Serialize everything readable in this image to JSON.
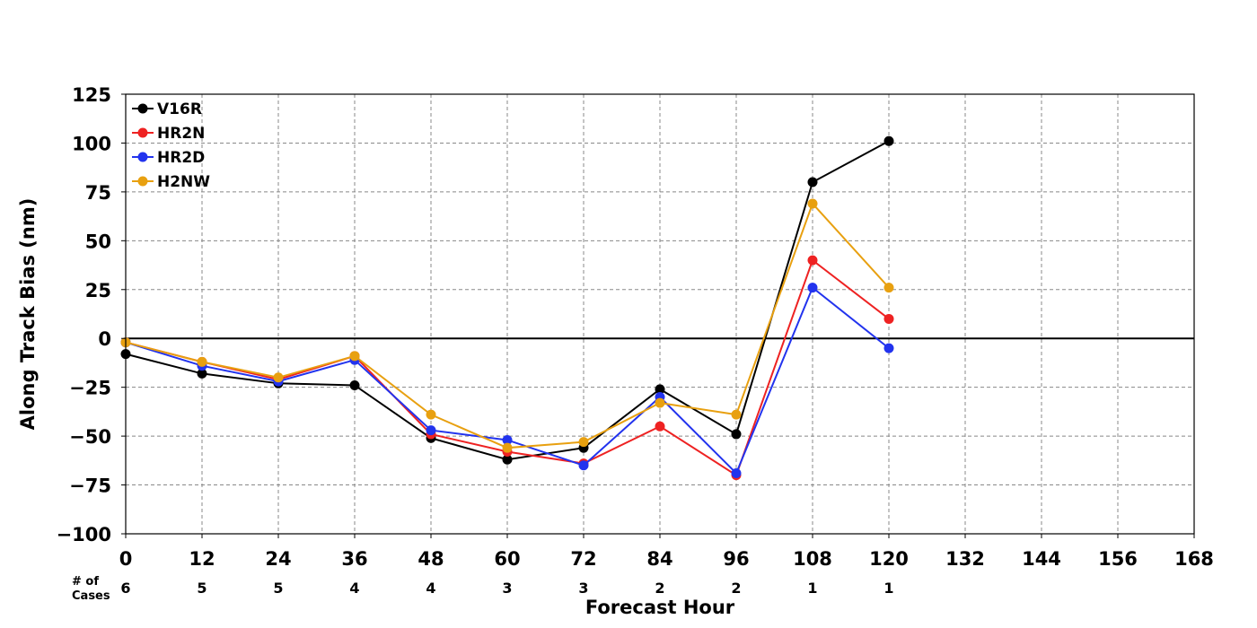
{
  "chart_data": {
    "type": "line",
    "title": "",
    "xlabel": "Forecast Hour",
    "ylabel": "Along Track Bias (nm)",
    "xlim": [
      0,
      168
    ],
    "ylim": [
      -100,
      125
    ],
    "x_ticks": [
      0,
      12,
      24,
      36,
      48,
      60,
      72,
      84,
      96,
      108,
      120,
      132,
      144,
      156,
      168
    ],
    "y_ticks": [
      -100,
      -75,
      -50,
      -25,
      0,
      25,
      50,
      75,
      100,
      125
    ],
    "x_tick_labels": [
      "0",
      "12",
      "24",
      "36",
      "48",
      "60",
      "72",
      "84",
      "96",
      "108",
      "120",
      "132",
      "144",
      "156",
      "168"
    ],
    "y_tick_labels": [
      "−100",
      "−75",
      "−50",
      "−25",
      "0",
      "25",
      "50",
      "75",
      "100",
      "125"
    ],
    "grid": true,
    "legend_position": "top-left",
    "cases_label_line1": "# of",
    "cases_label_line2": "Cases",
    "cases": [
      {
        "x": 0,
        "label": "6"
      },
      {
        "x": 12,
        "label": "5"
      },
      {
        "x": 24,
        "label": "5"
      },
      {
        "x": 36,
        "label": "4"
      },
      {
        "x": 48,
        "label": "4"
      },
      {
        "x": 60,
        "label": "3"
      },
      {
        "x": 72,
        "label": "3"
      },
      {
        "x": 84,
        "label": "2"
      },
      {
        "x": 96,
        "label": "2"
      },
      {
        "x": 108,
        "label": "1"
      },
      {
        "x": 120,
        "label": "1"
      }
    ],
    "x": [
      0,
      12,
      24,
      36,
      48,
      60,
      72,
      84,
      96,
      108,
      120
    ],
    "series": [
      {
        "name": "V16R",
        "color": "#000000",
        "values": [
          -8,
          -18,
          -23,
          -24,
          -51,
          -62,
          -56,
          -26,
          -49,
          80,
          101
        ]
      },
      {
        "name": "HR2N",
        "color": "#ee2222",
        "values": [
          -2,
          -12,
          -21,
          -9,
          -49,
          -58,
          -64,
          -45,
          -70,
          40,
          10
        ]
      },
      {
        "name": "HR2D",
        "color": "#2233ee",
        "values": [
          -2,
          -14,
          -22,
          -11,
          -47,
          -52,
          -65,
          -30,
          -69,
          26,
          -5
        ]
      },
      {
        "name": "H2NW",
        "color": "#e8a010",
        "values": [
          -2,
          -12,
          -20,
          -9,
          -39,
          -56,
          -53,
          -33,
          -39,
          69,
          26
        ]
      }
    ]
  }
}
